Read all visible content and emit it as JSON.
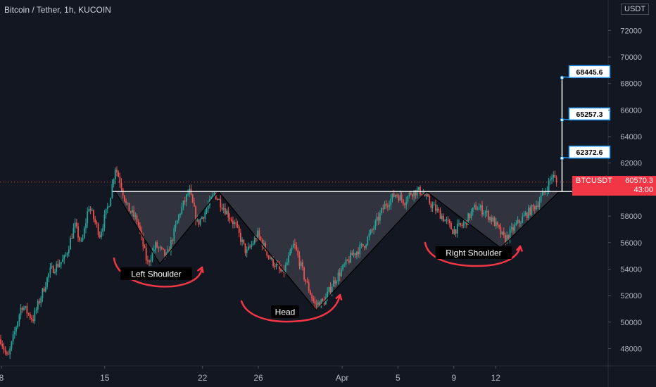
{
  "header": {
    "title": "Bitcoin / Tether, 1h, KUCOIN",
    "currency_button": "USDT"
  },
  "price_tag": {
    "symbol": "BTCUSDT",
    "price": "60570.3",
    "countdown": "43:00"
  },
  "colors": {
    "background": "#131722",
    "up": "#26a69a",
    "down": "#ef5350",
    "pattern_fill": "#4a4d57",
    "arrow": "#f23645",
    "target_line": "#ffffff",
    "target_box_border": "#2196f3",
    "axis_text": "#b2b5be"
  },
  "chart_data": {
    "type": "candlestick",
    "title": "Bitcoin / Tether, 1h, KUCOIN",
    "x_ticks": [
      "8",
      "15",
      "22",
      "26",
      "Apr",
      "5",
      "9",
      "12"
    ],
    "y_ticks": [
      48000,
      50000,
      52000,
      54000,
      56000,
      58000,
      60000,
      62000,
      64000,
      66000,
      68000,
      70000,
      72000
    ],
    "ylim": [
      46700,
      74300
    ],
    "grid": false,
    "y_scale_label": "USDT",
    "last_price": 60570.3,
    "neckline": 59850,
    "price_path": [
      [
        0,
        48700
      ],
      [
        0.5,
        47200
      ],
      [
        1.5,
        51300
      ],
      [
        2.3,
        50200
      ],
      [
        3.5,
        53800
      ],
      [
        4.6,
        54800
      ],
      [
        5.3,
        57300
      ],
      [
        5.8,
        55800
      ],
      [
        6.3,
        58800
      ],
      [
        7.1,
        56600
      ],
      [
        7.8,
        59200
      ],
      [
        8.2,
        61700
      ],
      [
        8.6,
        60500
      ],
      [
        9.0,
        58800
      ],
      [
        9.8,
        57600
      ],
      [
        10.5,
        54400
      ],
      [
        11.1,
        55800
      ],
      [
        11.9,
        54900
      ],
      [
        12.8,
        58200
      ],
      [
        13.5,
        59900
      ],
      [
        14.1,
        57400
      ],
      [
        14.8,
        58600
      ],
      [
        15.3,
        59700
      ],
      [
        16.0,
        58600
      ],
      [
        16.8,
        57300
      ],
      [
        17.6,
        55200
      ],
      [
        18.4,
        56600
      ],
      [
        19.3,
        54800
      ],
      [
        20.2,
        53600
      ],
      [
        21.0,
        55900
      ],
      [
        21.8,
        53200
      ],
      [
        22.5,
        51300
      ],
      [
        23.2,
        51600
      ],
      [
        23.7,
        52800
      ],
      [
        24.4,
        53900
      ],
      [
        25.2,
        55100
      ],
      [
        26.0,
        55800
      ],
      [
        26.7,
        57100
      ],
      [
        27.5,
        58800
      ],
      [
        28.3,
        59700
      ],
      [
        28.9,
        59100
      ],
      [
        29.4,
        59800
      ],
      [
        30.1,
        59900
      ],
      [
        30.8,
        58900
      ],
      [
        31.6,
        58000
      ],
      [
        32.4,
        56900
      ],
      [
        33.2,
        57400
      ],
      [
        34.0,
        58700
      ],
      [
        34.6,
        58400
      ],
      [
        35.3,
        57600
      ],
      [
        36.1,
        56200
      ],
      [
        36.9,
        57300
      ],
      [
        37.6,
        58100
      ],
      [
        38.4,
        58900
      ],
      [
        39.0,
        59900
      ],
      [
        39.5,
        61100
      ],
      [
        39.8,
        60570
      ]
    ],
    "shape_vertices": [
      [
        8.2,
        59850
      ],
      [
        11.4,
        54400
      ],
      [
        15.6,
        59850
      ],
      [
        22.6,
        50900
      ],
      [
        30.5,
        59850
      ],
      [
        35.8,
        55600
      ],
      [
        40,
        59850
      ]
    ],
    "target_line": {
      "x": 40.2,
      "from": 59850,
      "to": 68445.6
    },
    "targets": [
      62372.6,
      65257.3,
      68445.6
    ],
    "annotations": [
      "Left Shoulder",
      "Head",
      "Right Shoulder"
    ]
  }
}
